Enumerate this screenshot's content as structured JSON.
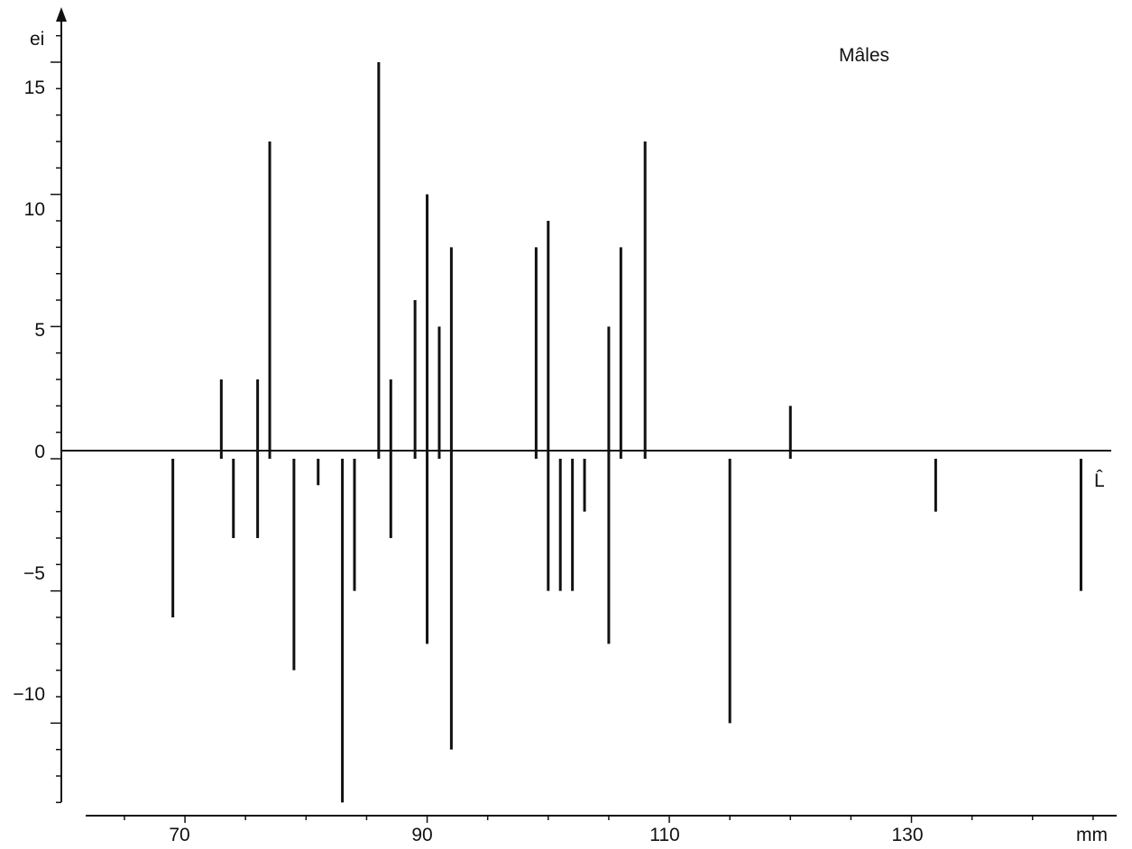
{
  "chart_data": {
    "type": "bar",
    "title": "",
    "legend": [
      "Mâles"
    ],
    "ylabel": "ei",
    "xlabel": "mm",
    "baseline_label": "L̂",
    "x_ticks": [
      "70",
      "90",
      "110",
      "130"
    ],
    "y_ticks": [
      "15",
      "10",
      "5",
      "0",
      "−5",
      "−10"
    ],
    "ylim": [
      -13.5,
      16.5
    ],
    "xlim": [
      61.8,
      146.5
    ],
    "grid": false,
    "series": [
      {
        "x": [
          69,
          73,
          74,
          76,
          77,
          79,
          81,
          83,
          84,
          86,
          87,
          89,
          90,
          91,
          92,
          99,
          100,
          101,
          102,
          103,
          105,
          106,
          108,
          115,
          120,
          132,
          144
        ],
        "values": [
          -6,
          3,
          -3,
          3,
          12,
          -8,
          -1,
          -13,
          -5,
          15,
          3,
          6,
          10,
          5,
          8,
          8,
          9,
          -5,
          -5,
          -2,
          5,
          8,
          12,
          -10,
          2,
          -2,
          -5
        ]
      },
      {
        "x": [
          76,
          87,
          90,
          92,
          100,
          105
        ],
        "values": [
          -3,
          -3,
          -7,
          -11,
          -5,
          -7
        ]
      }
    ],
    "colors": {
      "ink": "#111111"
    }
  }
}
